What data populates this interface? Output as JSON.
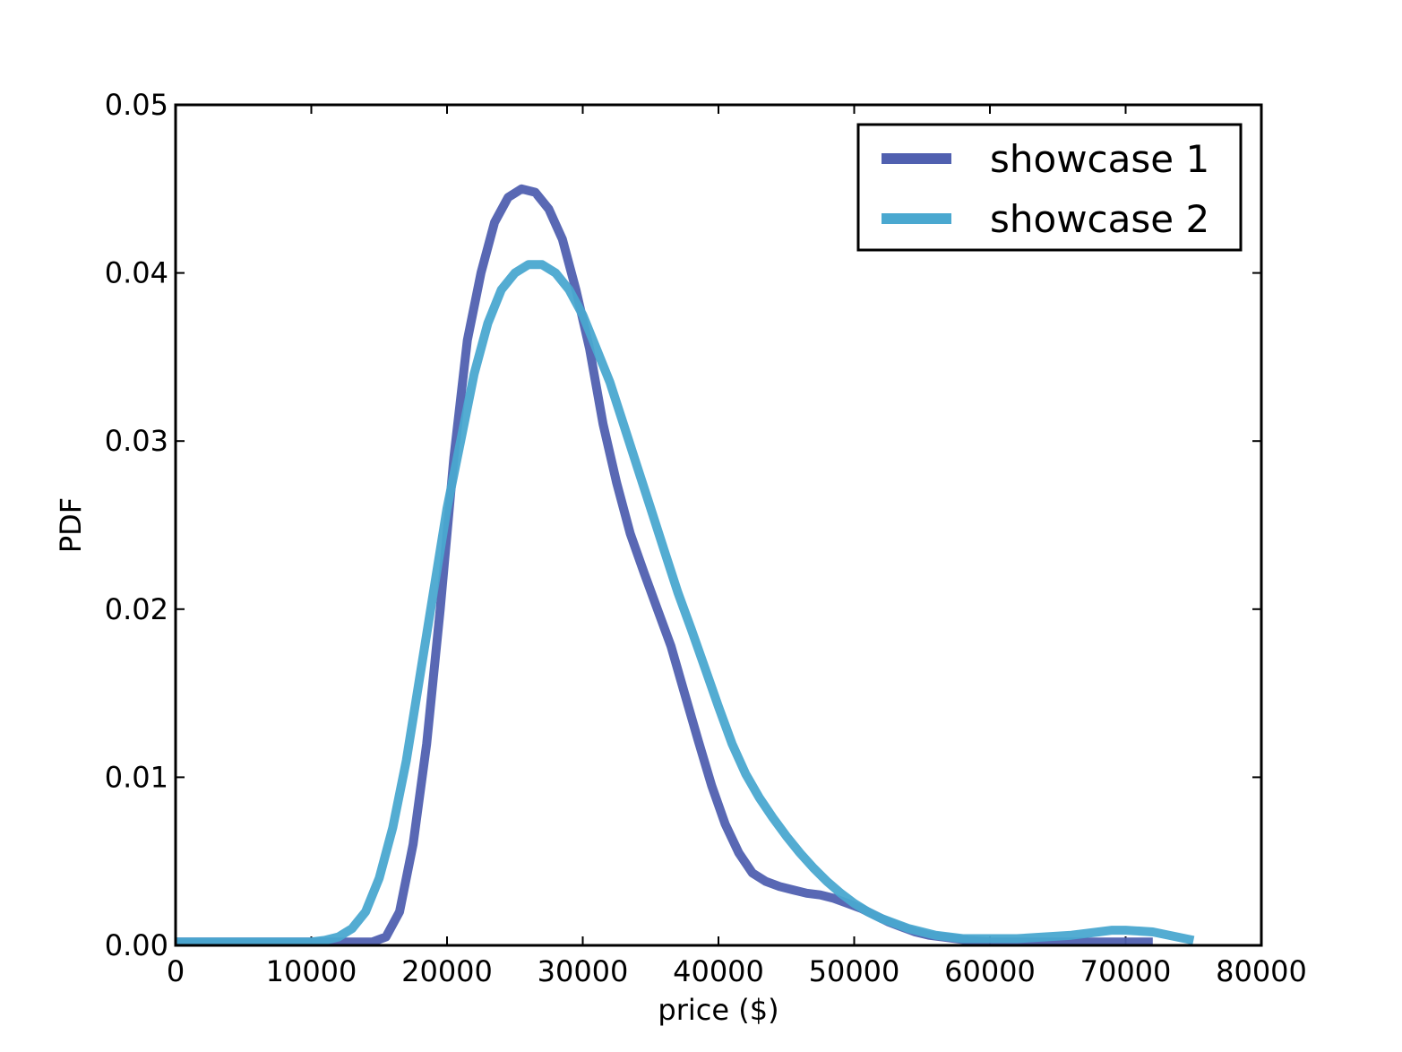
{
  "chart_data": {
    "type": "line",
    "title": "",
    "xlabel": "price ($)",
    "ylabel": "PDF",
    "xlim": [
      0,
      80000
    ],
    "ylim": [
      0,
      0.05
    ],
    "xticks": [
      0,
      10000,
      20000,
      30000,
      40000,
      50000,
      60000,
      70000,
      80000
    ],
    "xtick_labels": [
      "0",
      "10000",
      "20000",
      "30000",
      "40000",
      "50000",
      "60000",
      "70000",
      "80000"
    ],
    "yticks": [
      0,
      0.01,
      0.02,
      0.03,
      0.04,
      0.05
    ],
    "ytick_labels": [
      "0.00",
      "0.01",
      "0.02",
      "0.03",
      "0.04",
      "0.05"
    ],
    "grid": false,
    "legend_position": "top-right",
    "series": [
      {
        "name": "showcase 1",
        "color": "#5060b0",
        "x": [
          0,
          10000,
          13000,
          14500,
          15500,
          16500,
          17500,
          18500,
          19500,
          20500,
          21500,
          22500,
          23500,
          24500,
          25500,
          26500,
          27500,
          28500,
          29500,
          30500,
          31500,
          32500,
          33500,
          34500,
          35500,
          36500,
          37500,
          38500,
          39500,
          40500,
          41500,
          42500,
          43500,
          44500,
          45500,
          46500,
          47500,
          48500,
          49500,
          50500,
          51500,
          52500,
          53500,
          54500,
          55500,
          56500,
          57500,
          58500,
          60000,
          62000,
          65000,
          70000,
          72000
        ],
        "y": [
          0.0002,
          0.0002,
          0.0002,
          0.0002,
          0.0005,
          0.002,
          0.006,
          0.012,
          0.02,
          0.029,
          0.036,
          0.04,
          0.043,
          0.0445,
          0.045,
          0.0448,
          0.0438,
          0.042,
          0.039,
          0.0355,
          0.031,
          0.0275,
          0.0245,
          0.0222,
          0.02,
          0.0178,
          0.015,
          0.0122,
          0.0095,
          0.0072,
          0.0055,
          0.0043,
          0.0038,
          0.0035,
          0.0033,
          0.0031,
          0.003,
          0.0028,
          0.0025,
          0.0022,
          0.0018,
          0.0014,
          0.0011,
          0.0008,
          0.0006,
          0.0005,
          0.0004,
          0.0003,
          0.0002,
          0.0002,
          0.0002,
          0.0002,
          0.0002
        ]
      },
      {
        "name": "showcase 2",
        "color": "#4aa8d0",
        "x": [
          0,
          10000,
          11000,
          12000,
          13000,
          14000,
          15000,
          16000,
          17000,
          18000,
          19000,
          20000,
          21000,
          22000,
          23000,
          24000,
          25000,
          26000,
          27000,
          28000,
          29000,
          30000,
          31000,
          32000,
          33000,
          34000,
          35000,
          36000,
          37000,
          38000,
          39000,
          40000,
          41000,
          42000,
          43000,
          44000,
          45000,
          46000,
          47000,
          48000,
          49000,
          50000,
          51000,
          52000,
          53000,
          54000,
          55000,
          56000,
          57000,
          58000,
          60000,
          62000,
          64000,
          66000,
          68000,
          69000,
          70000,
          72000,
          75000
        ],
        "y": [
          0.0002,
          0.0002,
          0.0003,
          0.0005,
          0.001,
          0.002,
          0.004,
          0.007,
          0.011,
          0.016,
          0.021,
          0.026,
          0.03,
          0.034,
          0.037,
          0.039,
          0.04,
          0.0405,
          0.0405,
          0.04,
          0.039,
          0.0375,
          0.0355,
          0.0335,
          0.031,
          0.0285,
          0.026,
          0.0235,
          0.021,
          0.0188,
          0.0165,
          0.0142,
          0.012,
          0.0102,
          0.0088,
          0.0076,
          0.0065,
          0.0055,
          0.0046,
          0.0038,
          0.0031,
          0.0025,
          0.002,
          0.0016,
          0.0013,
          0.001,
          0.0008,
          0.0006,
          0.0005,
          0.0004,
          0.0004,
          0.0004,
          0.0005,
          0.0006,
          0.0008,
          0.0009,
          0.0009,
          0.0008,
          0.0003
        ]
      }
    ]
  }
}
